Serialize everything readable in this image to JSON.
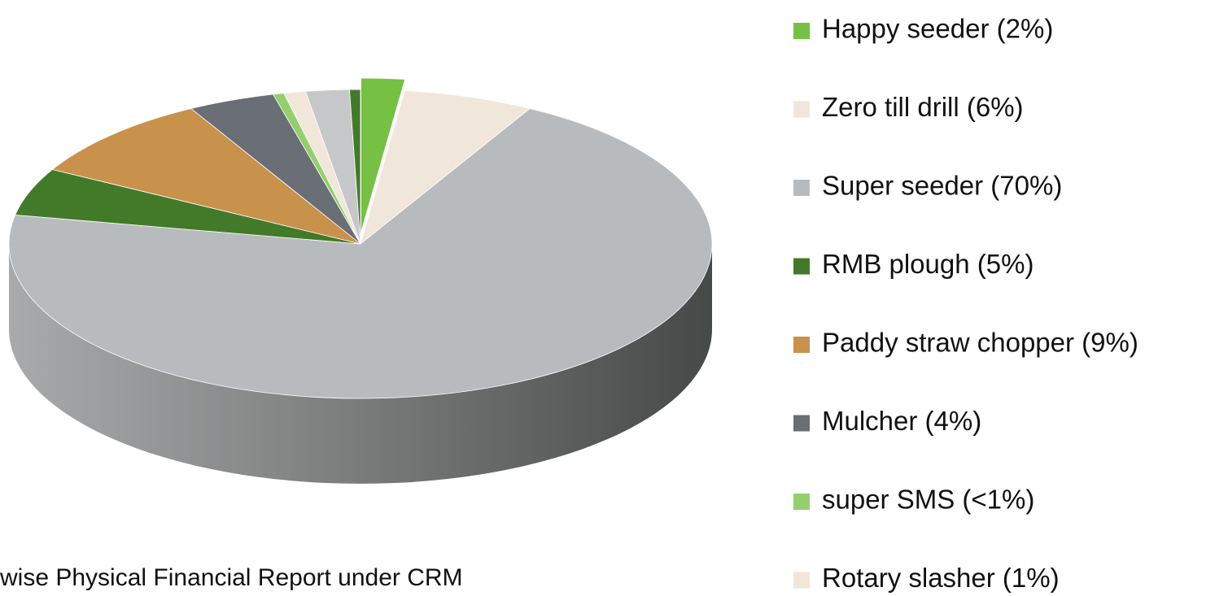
{
  "chart_data": {
    "type": "pie",
    "caption": "wise Physical Financial Report under CRM",
    "categories": [
      "Happy seeder (2%)",
      "Zero till drill (6%)",
      "Super seeder (70%)",
      "RMB plough (5%)",
      "Paddy straw chopper (9%)",
      "Mulcher (4%)",
      "super SMS (<1%)",
      "Rotary slasher (1%)",
      null,
      null
    ],
    "values": [
      2,
      6,
      70,
      5,
      9,
      4,
      0.5,
      1,
      2,
      0.5
    ],
    "colors": [
      "#76c043",
      "#f1e6da",
      "#b8bbbd",
      "#437a2a",
      "#c8914c",
      "#6a6e75",
      "#93cf6b",
      "#f1e6da",
      "#c6c7c9",
      "#437a2a"
    ],
    "exploded": [
      0
    ]
  }
}
